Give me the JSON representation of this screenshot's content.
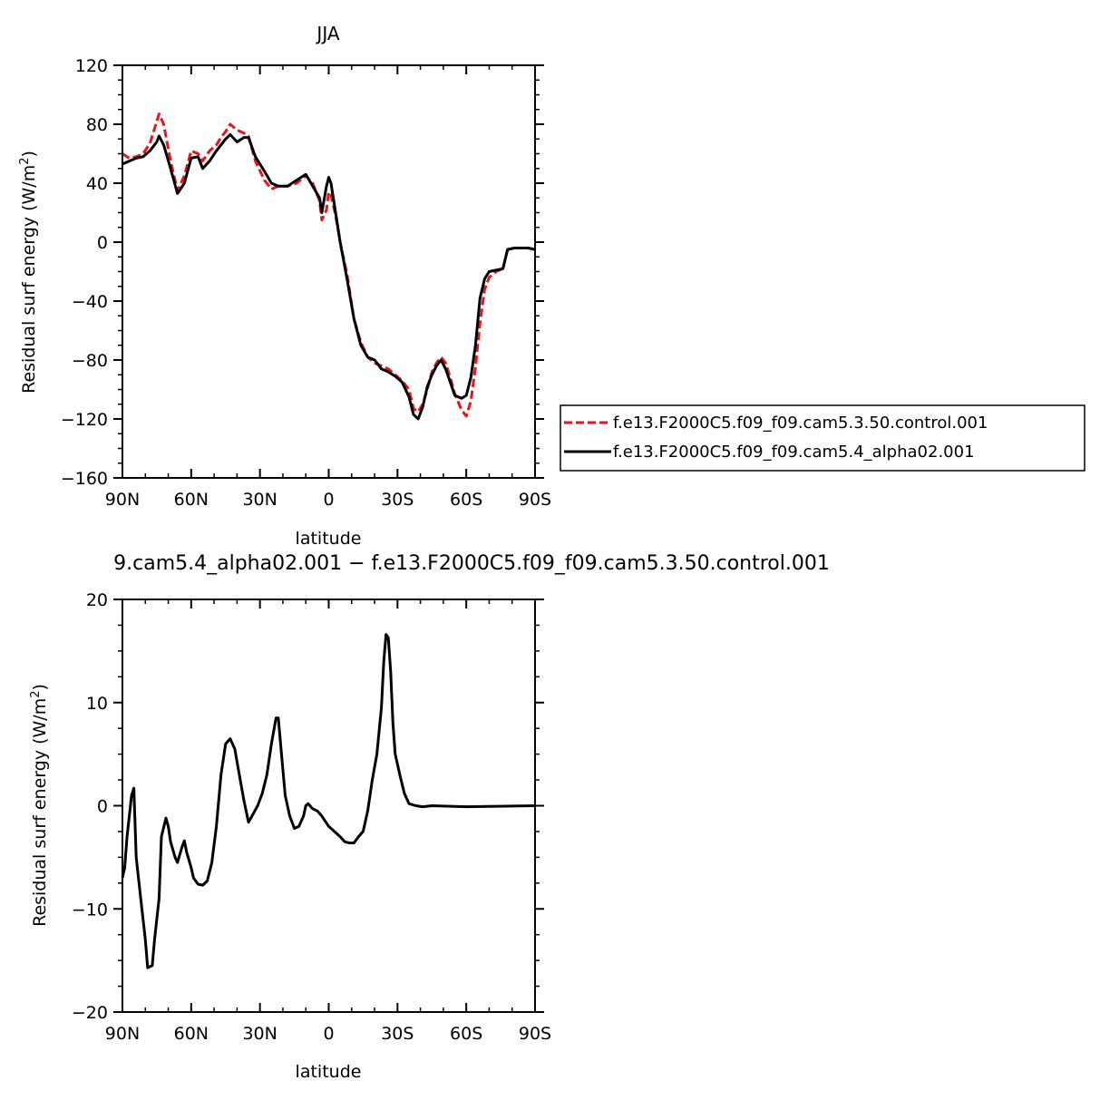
{
  "chart_data": [
    {
      "type": "line",
      "title": "JJA",
      "xlabel": "latitude",
      "ylabel_main": "Residual surf energy (W/m",
      "ylabel_sup": "2",
      "ylabel_close": ")",
      "xlim": [
        90,
        -90
      ],
      "ylim": [
        -160,
        120
      ],
      "xticks": [
        90,
        60,
        30,
        0,
        -30,
        -60,
        -90
      ],
      "xtick_labels": [
        "90N",
        "60N",
        "30N",
        "0",
        "30S",
        "60S",
        "90S"
      ],
      "yticks": [
        -160,
        -120,
        -80,
        -40,
        0,
        40,
        80,
        120
      ],
      "ytick_labels": [
        "−160",
        "−120",
        "−80",
        "−40",
        "0",
        "40",
        "80",
        "120"
      ],
      "legend_position": "right, outside plot",
      "series": [
        {
          "name": "f.e13.F2000C5.f09_f09.cam5.3.50.control.001",
          "color": "#e8141c",
          "dash": "dashed",
          "points": [
            [
              90,
              60
            ],
            [
              87,
              57
            ],
            [
              84,
              58
            ],
            [
              81,
              60
            ],
            [
              78,
              67
            ],
            [
              75,
              82
            ],
            [
              74,
              87
            ],
            [
              72,
              80
            ],
            [
              69,
              55
            ],
            [
              66,
              35
            ],
            [
              63,
              45
            ],
            [
              60,
              62
            ],
            [
              57,
              60
            ],
            [
              55,
              55
            ],
            [
              52,
              62
            ],
            [
              49,
              66
            ],
            [
              47,
              71
            ],
            [
              45,
              75
            ],
            [
              43,
              80
            ],
            [
              40,
              76
            ],
            [
              37,
              74
            ],
            [
              35,
              72
            ],
            [
              32,
              55
            ],
            [
              28,
              42
            ],
            [
              25,
              36
            ],
            [
              22,
              38
            ],
            [
              18,
              38
            ],
            [
              14,
              40
            ],
            [
              10,
              45
            ],
            [
              7,
              40
            ],
            [
              4,
              28
            ],
            [
              3,
              15
            ],
            [
              1,
              22
            ],
            [
              0,
              34
            ],
            [
              -1,
              32
            ],
            [
              -3,
              18
            ],
            [
              -5,
              0
            ],
            [
              -8,
              -22
            ],
            [
              -11,
              -52
            ],
            [
              -14,
              -68
            ],
            [
              -17,
              -78
            ],
            [
              -20,
              -82
            ],
            [
              -23,
              -84
            ],
            [
              -26,
              -86
            ],
            [
              -29,
              -90
            ],
            [
              -32,
              -94
            ],
            [
              -35,
              -100
            ],
            [
              -37,
              -113
            ],
            [
              -39,
              -115
            ],
            [
              -41,
              -110
            ],
            [
              -43,
              -100
            ],
            [
              -45,
              -88
            ],
            [
              -47,
              -82
            ],
            [
              -49,
              -78
            ],
            [
              -51,
              -82
            ],
            [
              -53,
              -92
            ],
            [
              -55,
              -103
            ],
            [
              -58,
              -114
            ],
            [
              -60,
              -118
            ],
            [
              -62,
              -108
            ],
            [
              -64,
              -85
            ],
            [
              -66,
              -55
            ],
            [
              -68,
              -32
            ],
            [
              -70,
              -24
            ],
            [
              -73,
              -20
            ],
            [
              -76,
              -18
            ],
            [
              -78,
              -5
            ],
            [
              -81,
              -4
            ],
            [
              -84,
              -4
            ],
            [
              -87,
              -4
            ],
            [
              -90,
              -5
            ]
          ]
        },
        {
          "name": "f.e13.F2000C5.f09_f09.cam5.4_alpha02.001",
          "color": "#000000",
          "dash": "solid",
          "points": [
            [
              90,
              53
            ],
            [
              87,
              55
            ],
            [
              84,
              57
            ],
            [
              81,
              58
            ],
            [
              78,
              62
            ],
            [
              75,
              68
            ],
            [
              74,
              72
            ],
            [
              72,
              66
            ],
            [
              69,
              50
            ],
            [
              66,
              33
            ],
            [
              63,
              40
            ],
            [
              60,
              57
            ],
            [
              57,
              58
            ],
            [
              55,
              50
            ],
            [
              52,
              55
            ],
            [
              49,
              62
            ],
            [
              47,
              66
            ],
            [
              45,
              70
            ],
            [
              43,
              73
            ],
            [
              40,
              68
            ],
            [
              37,
              71
            ],
            [
              35,
              71
            ],
            [
              32,
              58
            ],
            [
              28,
              48
            ],
            [
              25,
              40
            ],
            [
              22,
              38
            ],
            [
              18,
              38
            ],
            [
              14,
              42
            ],
            [
              10,
              46
            ],
            [
              7,
              38
            ],
            [
              4,
              30
            ],
            [
              3,
              20
            ],
            [
              1,
              38
            ],
            [
              0,
              44
            ],
            [
              -1,
              40
            ],
            [
              -3,
              20
            ],
            [
              -5,
              0
            ],
            [
              -8,
              -25
            ],
            [
              -11,
              -52
            ],
            [
              -14,
              -70
            ],
            [
              -17,
              -78
            ],
            [
              -20,
              -80
            ],
            [
              -23,
              -86
            ],
            [
              -26,
              -88
            ],
            [
              -29,
              -91
            ],
            [
              -32,
              -95
            ],
            [
              -35,
              -105
            ],
            [
              -37,
              -117
            ],
            [
              -39,
              -120
            ],
            [
              -41,
              -112
            ],
            [
              -43,
              -98
            ],
            [
              -45,
              -90
            ],
            [
              -47,
              -84
            ],
            [
              -49,
              -80
            ],
            [
              -51,
              -86
            ],
            [
              -53,
              -95
            ],
            [
              -55,
              -104
            ],
            [
              -58,
              -106
            ],
            [
              -60,
              -104
            ],
            [
              -62,
              -92
            ],
            [
              -64,
              -70
            ],
            [
              -66,
              -38
            ],
            [
              -68,
              -25
            ],
            [
              -70,
              -20
            ],
            [
              -73,
              -19
            ],
            [
              -76,
              -18
            ],
            [
              -78,
              -5
            ],
            [
              -81,
              -4
            ],
            [
              -84,
              -4
            ],
            [
              -87,
              -4
            ],
            [
              -90,
              -5
            ]
          ]
        }
      ]
    },
    {
      "type": "line",
      "title": "9.cam5.4_alpha02.001  −  f.e13.F2000C5.f09_f09.cam5.3.50.control.001",
      "xlabel": "latitude",
      "ylabel_main": "Residual surf energy (W/m",
      "ylabel_sup": "2",
      "ylabel_close": ")",
      "xlim": [
        90,
        -90
      ],
      "ylim": [
        -20,
        20
      ],
      "xticks": [
        90,
        60,
        30,
        0,
        -30,
        -60,
        -90
      ],
      "xtick_labels": [
        "90N",
        "60N",
        "30N",
        "0",
        "30S",
        "60S",
        "90S"
      ],
      "yticks": [
        -20,
        -10,
        0,
        10,
        20
      ],
      "ytick_labels": [
        "−20",
        "−10",
        "0",
        "10",
        "20"
      ],
      "series": [
        {
          "color": "#000000",
          "dash": "solid",
          "points": [
            [
              90,
              -7
            ],
            [
              89,
              -6
            ],
            [
              88,
              -3
            ],
            [
              86,
              1
            ],
            [
              85,
              1.7
            ],
            [
              84,
              -5
            ],
            [
              82,
              -9
            ],
            [
              80,
              -13
            ],
            [
              79,
              -15.7
            ],
            [
              77,
              -15.5
            ],
            [
              76,
              -13
            ],
            [
              75,
              -11
            ],
            [
              74,
              -9
            ],
            [
              73,
              -3
            ],
            [
              71,
              -1.2
            ],
            [
              70,
              -2
            ],
            [
              69,
              -3.5
            ],
            [
              67,
              -5
            ],
            [
              66,
              -5.5
            ],
            [
              64,
              -4
            ],
            [
              63,
              -3.4
            ],
            [
              62,
              -4.5
            ],
            [
              60,
              -6
            ],
            [
              59,
              -7
            ],
            [
              57,
              -7.6
            ],
            [
              55,
              -7.7
            ],
            [
              53,
              -7.3
            ],
            [
              51,
              -5.5
            ],
            [
              49,
              -2
            ],
            [
              47,
              3
            ],
            [
              45,
              6
            ],
            [
              43,
              6.5
            ],
            [
              41,
              5.5
            ],
            [
              39,
              3
            ],
            [
              37,
              0.5
            ],
            [
              35,
              -1.6
            ],
            [
              33,
              -0.8
            ],
            [
              31,
              0
            ],
            [
              29,
              1.2
            ],
            [
              27,
              3
            ],
            [
              25,
              6
            ],
            [
              23,
              8.5
            ],
            [
              22,
              8.5
            ],
            [
              21,
              6
            ],
            [
              19,
              1
            ],
            [
              17,
              -1
            ],
            [
              15,
              -2.2
            ],
            [
              13,
              -2
            ],
            [
              11,
              -1
            ],
            [
              10,
              0
            ],
            [
              9,
              0.2
            ],
            [
              7,
              -0.3
            ],
            [
              5,
              -0.5
            ],
            [
              3,
              -1
            ],
            [
              0,
              -2
            ],
            [
              -3,
              -2.6
            ],
            [
              -5,
              -3
            ],
            [
              -7,
              -3.5
            ],
            [
              -9,
              -3.6
            ],
            [
              -11,
              -3.6
            ],
            [
              -13,
              -3
            ],
            [
              -15,
              -2.5
            ],
            [
              -17,
              -0.5
            ],
            [
              -19,
              2.5
            ],
            [
              -21,
              5
            ],
            [
              -23,
              9.5
            ],
            [
              -24,
              14
            ],
            [
              -25,
              16.6
            ],
            [
              -26,
              16.3
            ],
            [
              -27,
              13
            ],
            [
              -28,
              8
            ],
            [
              -29,
              5
            ],
            [
              -31,
              3
            ],
            [
              -33,
              1.2
            ],
            [
              -35,
              0.2
            ],
            [
              -38,
              0
            ],
            [
              -41,
              -0.1
            ],
            [
              -45,
              0
            ],
            [
              -60,
              -0.1
            ],
            [
              -90,
              0
            ]
          ]
        }
      ]
    }
  ]
}
